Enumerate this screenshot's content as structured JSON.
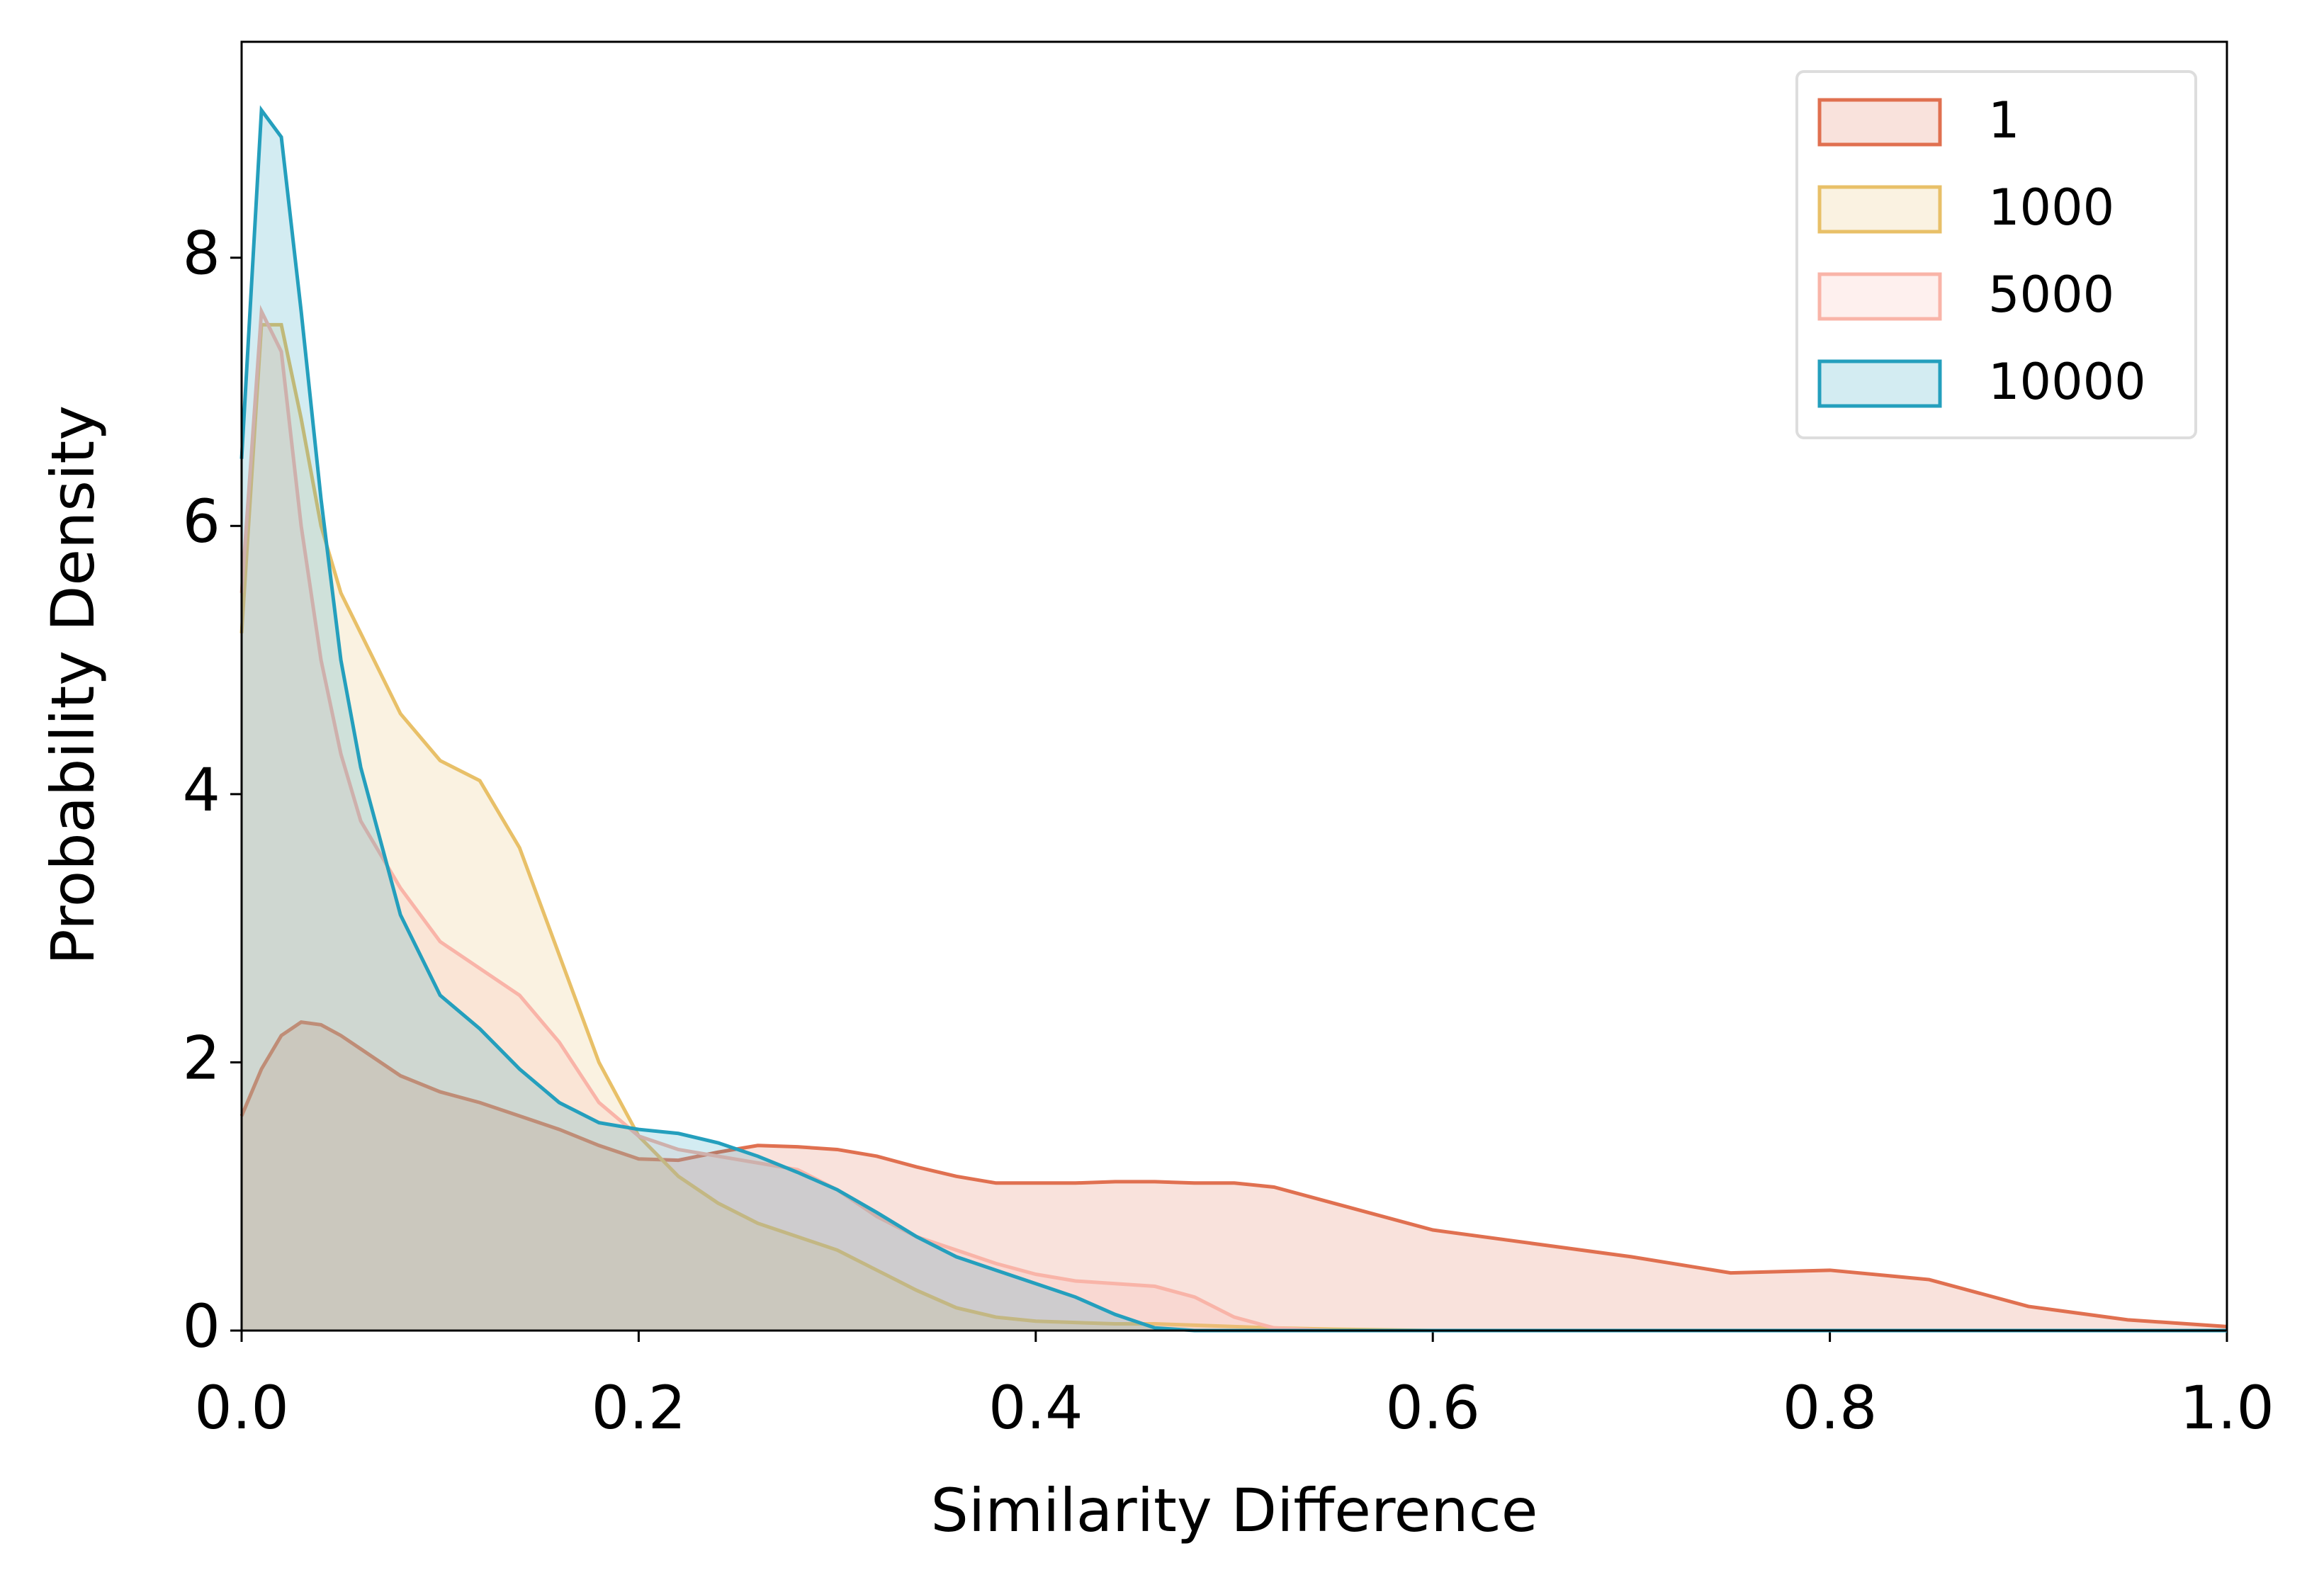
{
  "chart_data": {
    "type": "area",
    "x_label": "Similarity Difference",
    "y_label": "Probability Density",
    "x": [
      0,
      0.01,
      0.02,
      0.03,
      0.04,
      0.05,
      0.06,
      0.08,
      0.1,
      0.12,
      0.14,
      0.16,
      0.18,
      0.2,
      0.22,
      0.24,
      0.26,
      0.28,
      0.3,
      0.32,
      0.34,
      0.36,
      0.38,
      0.4,
      0.42,
      0.44,
      0.46,
      0.48,
      0.5,
      0.52,
      0.55,
      0.6,
      0.65,
      0.7,
      0.75,
      0.8,
      0.85,
      0.9,
      0.95,
      1.0
    ],
    "series": [
      {
        "name": "1",
        "color": "#e07050",
        "values": [
          1.6,
          1.95,
          2.2,
          2.3,
          2.28,
          2.2,
          2.1,
          1.9,
          1.78,
          1.7,
          1.6,
          1.5,
          1.38,
          1.28,
          1.27,
          1.33,
          1.38,
          1.37,
          1.35,
          1.3,
          1.22,
          1.15,
          1.1,
          1.1,
          1.1,
          1.11,
          1.11,
          1.1,
          1.1,
          1.07,
          0.95,
          0.75,
          0.65,
          0.55,
          0.43,
          0.45,
          0.38,
          0.18,
          0.08,
          0.03
        ]
      },
      {
        "name": "1000",
        "color": "#e8c068",
        "values": [
          5.2,
          7.5,
          7.5,
          6.8,
          6.0,
          5.5,
          5.2,
          4.6,
          4.25,
          4.1,
          3.6,
          2.8,
          2.0,
          1.45,
          1.15,
          0.95,
          0.8,
          0.7,
          0.6,
          0.45,
          0.3,
          0.17,
          0.1,
          0.07,
          0.06,
          0.05,
          0.05,
          0.04,
          0.03,
          0.02,
          0.01,
          0,
          0,
          0,
          0,
          0,
          0,
          0,
          0,
          0
        ]
      },
      {
        "name": "5000",
        "color": "#f9b4a8",
        "values": [
          5.5,
          7.6,
          7.3,
          6.0,
          5.0,
          4.3,
          3.8,
          3.3,
          2.9,
          2.7,
          2.5,
          2.15,
          1.7,
          1.45,
          1.35,
          1.3,
          1.25,
          1.2,
          1.05,
          0.85,
          0.7,
          0.6,
          0.5,
          0.42,
          0.37,
          0.35,
          0.33,
          0.25,
          0.1,
          0.02,
          0,
          0,
          0,
          0,
          0,
          0,
          0,
          0,
          0,
          0
        ]
      },
      {
        "name": "10000",
        "color": "#249fbd",
        "values": [
          6.5,
          9.1,
          8.9,
          7.6,
          6.2,
          5.0,
          4.2,
          3.1,
          2.5,
          2.25,
          1.95,
          1.7,
          1.55,
          1.5,
          1.47,
          1.4,
          1.3,
          1.18,
          1.05,
          0.88,
          0.7,
          0.55,
          0.45,
          0.35,
          0.25,
          0.12,
          0.02,
          0,
          0,
          0,
          0,
          0,
          0,
          0,
          0,
          0,
          0,
          0,
          0,
          0
        ]
      }
    ],
    "xlim": [
      0,
      1
    ],
    "ylim": [
      0,
      9.61
    ],
    "xticks": [
      {
        "value": 0,
        "label": "0.0"
      },
      0.2,
      0.4,
      0.6,
      0.8,
      {
        "value": 1,
        "label": "1.0"
      }
    ],
    "yticks": [
      0,
      2,
      4,
      6,
      8
    ],
    "fill_opacity": 0.2,
    "legend": "upper right"
  }
}
